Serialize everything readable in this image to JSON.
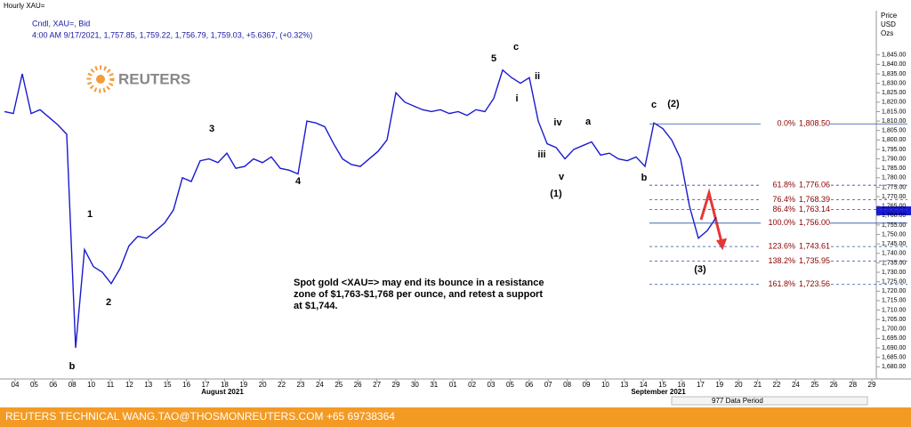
{
  "chart_data": {
    "type": "line",
    "title": "Hourly XAU=",
    "subtitle": "4:00 AM 9/17/2021, 1,757.85, 1,759.22, 1,756.79, 1,759.03, +5.6367, (+0.32%)",
    "y_axis_label": [
      "Price",
      "USD",
      "Ozs"
    ],
    "logo": "REUTERS",
    "x_tick_labels": [
      "04",
      "05",
      "06",
      "08",
      "10",
      "11",
      "12",
      "13",
      "15",
      "16",
      "17",
      "18",
      "19",
      "20",
      "22",
      "23",
      "24",
      "25",
      "26",
      "27",
      "29",
      "30",
      "31",
      "01",
      "02",
      "03",
      "05",
      "06",
      "07",
      "08",
      "09",
      "10",
      "13",
      "14",
      "15",
      "16",
      "17",
      "19",
      "20",
      "21",
      "22",
      "24",
      "25",
      "26",
      "28",
      "29"
    ],
    "x_month_labels": [
      "August 2021",
      "September 2021"
    ],
    "data_period": "977 Data Period",
    "series": [
      {
        "name": "Cndl, XAU=, Bid",
        "color": "#1a1ad0",
        "values": [
          1815,
          1814,
          1835,
          1814,
          1816,
          1812,
          1808,
          1803,
          1690,
          1742,
          1733,
          1730,
          1724,
          1732,
          1744,
          1749,
          1748,
          1752,
          1756,
          1763,
          1780,
          1778,
          1789,
          1790,
          1788,
          1793,
          1785,
          1786,
          1790,
          1788,
          1791,
          1785,
          1784,
          1782,
          1810,
          1809,
          1807,
          1798,
          1790,
          1787,
          1786,
          1790,
          1794,
          1800,
          1825,
          1820,
          1818,
          1816,
          1815,
          1816,
          1814,
          1815,
          1813,
          1816,
          1815,
          1822,
          1837,
          1833,
          1830,
          1833,
          1810,
          1798,
          1796,
          1790,
          1795,
          1797,
          1799,
          1792,
          1793,
          1790,
          1789,
          1791,
          1786,
          1809,
          1806,
          1800,
          1790,
          1765,
          1748,
          1752,
          1759
        ]
      }
    ],
    "ylim": [
      1674,
      1867
    ],
    "yticks": [
      {
        "value": 1680,
        "label": "1,680.00"
      },
      {
        "value": 1685,
        "label": "1,685.00"
      },
      {
        "value": 1690,
        "label": "1,690.00"
      },
      {
        "value": 1695,
        "label": "1,695.00"
      },
      {
        "value": 1700,
        "label": "1,700.00"
      },
      {
        "value": 1705,
        "label": "1,705.00"
      },
      {
        "value": 1710,
        "label": "1,710.00"
      },
      {
        "value": 1715,
        "label": "1,715.00"
      },
      {
        "value": 1720,
        "label": "1,720.00"
      },
      {
        "value": 1725,
        "label": "1,725.00"
      },
      {
        "value": 1730,
        "label": "1,730.00"
      },
      {
        "value": 1735,
        "label": "1,735.00"
      },
      {
        "value": 1740,
        "label": "1,740.00"
      },
      {
        "value": 1745,
        "label": "1,745.00"
      },
      {
        "value": 1750,
        "label": "1,750.00"
      },
      {
        "value": 1755,
        "label": "1,755.00"
      },
      {
        "value": 1760,
        "label": "1,760.00"
      },
      {
        "value": 1765,
        "label": "1,765.00"
      },
      {
        "value": 1770,
        "label": "1,770.00"
      },
      {
        "value": 1775,
        "label": "1,775.00"
      },
      {
        "value": 1780,
        "label": "1,780.00"
      },
      {
        "value": 1785,
        "label": "1,785.00"
      },
      {
        "value": 1790,
        "label": "1,790.00"
      },
      {
        "value": 1795,
        "label": "1,795.00"
      },
      {
        "value": 1800,
        "label": "1,800.00"
      },
      {
        "value": 1805,
        "label": "1,805.00"
      },
      {
        "value": 1810,
        "label": "1,810.00"
      },
      {
        "value": 1815,
        "label": "1,815.00"
      },
      {
        "value": 1820,
        "label": "1,820.00"
      },
      {
        "value": 1825,
        "label": "1,825.00"
      },
      {
        "value": 1830,
        "label": "1,830.00"
      },
      {
        "value": 1835,
        "label": "1,835.00"
      },
      {
        "value": 1840,
        "label": "1,840.00"
      },
      {
        "value": 1845,
        "label": "1,845.00"
      }
    ],
    "fib_levels": [
      {
        "percent": "0.0%",
        "value": 1808.5,
        "label": "1,808.50"
      },
      {
        "percent": "61.8%",
        "value": 1776.06,
        "label": "1,776.06"
      },
      {
        "percent": "76.4%",
        "value": 1768.39,
        "label": "1,768.39"
      },
      {
        "percent": "86.4%",
        "value": 1763.14,
        "label": "1,763.14"
      },
      {
        "percent": "100.0%",
        "value": 1756.0,
        "label": "1,756.00"
      },
      {
        "percent": "123.6%",
        "value": 1743.61,
        "label": "1,743.61"
      },
      {
        "percent": "138.2%",
        "value": 1735.95,
        "label": "1,735.95"
      },
      {
        "percent": "161.8%",
        "value": 1723.56,
        "label": "1,723.56"
      }
    ],
    "wave_labels": [
      "b",
      "1",
      "2",
      "3",
      "4",
      "5",
      "c",
      "i",
      "ii",
      "iii",
      "iv",
      "v",
      "a",
      "b",
      "c",
      "(2)",
      "(1)",
      "(3)"
    ],
    "comment": [
      "Spot gold <XAU=> may end its bounce in a resistance",
      "zone of $1,763-$1,768 per ounce, and retest a support",
      "at $1,744."
    ],
    "footer": "REUTERS TECHNICAL  WANG.TAO@THOSMONREUTERS.COM  +65 69738364"
  }
}
